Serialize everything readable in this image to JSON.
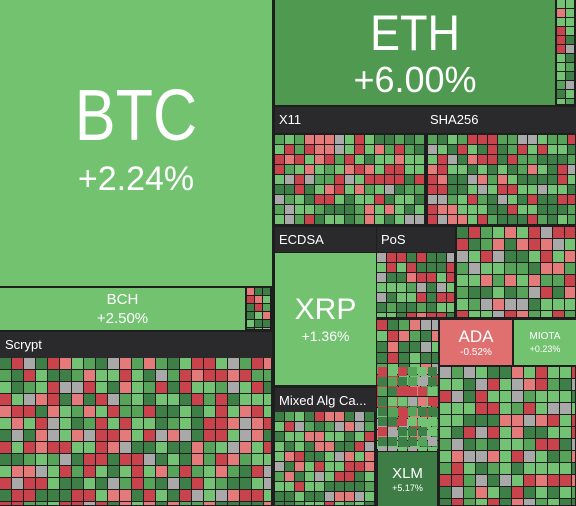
{
  "tiles": [
    {
      "label": "BTC",
      "change": "+2.24%"
    },
    {
      "label": "BCH",
      "change": "+2.50%"
    },
    {
      "label": "ETH",
      "change": "+6.00%"
    },
    {
      "label": "XRP",
      "change": "+1.36%"
    },
    {
      "label": "ADA",
      "change": "-0.52%"
    },
    {
      "label": "MIOTA",
      "change": "+0.23%"
    },
    {
      "label": "XLM",
      "change": "+5.17%"
    }
  ],
  "groups": [
    "Scrypt",
    "X11",
    "SHA256",
    "ECDSA",
    "PoS",
    "Mixed Alg Ca..."
  ]
}
